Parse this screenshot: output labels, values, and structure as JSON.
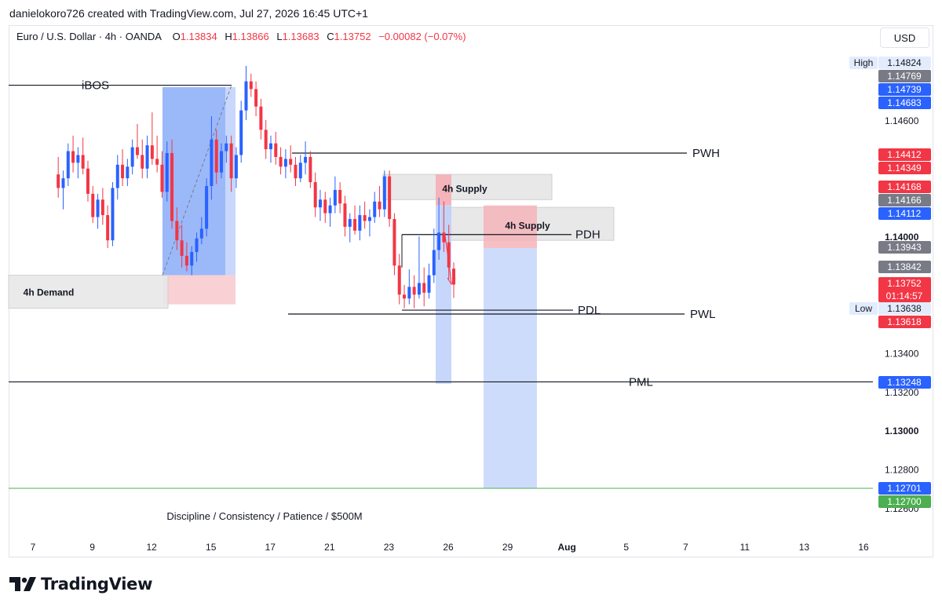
{
  "credit": "danielokoro726 created with TradingView.com, Jul 27, 2026 16:45 UTC+1",
  "header": {
    "symbol": "Euro / U.S. Dollar · 4h · OANDA",
    "o_label": "O",
    "o": "1.13834",
    "h_label": "H",
    "h": "1.13866",
    "l_label": "L",
    "l": "1.13683",
    "c_label": "C",
    "c": "1.13752",
    "change": "−0.00082 (−0.07%)"
  },
  "currency_button": "USD",
  "brand": "TradingView",
  "colors": {
    "bull": "#2962ff",
    "bear": "#f23645",
    "supply_zone": "#e8e8e8",
    "demand_fill": "#f9d0d4",
    "long_zone": "#b9cdfb",
    "accent_blue": "#2962ff",
    "gray_tag": "#787b86",
    "green_line": "#4caf50"
  },
  "chart_data": {
    "type": "candlestick",
    "instrument": "EURUSD",
    "timeframe": "4h",
    "ylim": [
      1.1255,
      1.1495
    ],
    "x_ticks": [
      {
        "label": "7",
        "x": 0
      },
      {
        "label": "9",
        "x": 12
      },
      {
        "label": "12",
        "x": 24
      },
      {
        "label": "15",
        "x": 36
      },
      {
        "label": "17",
        "x": 48
      },
      {
        "label": "21",
        "x": 60
      },
      {
        "label": "23",
        "x": 72
      },
      {
        "label": "26",
        "x": 84
      },
      {
        "label": "29",
        "x": 96
      },
      {
        "label": "Aug",
        "x": 108
      },
      {
        "label": "5",
        "x": 120
      },
      {
        "label": "7",
        "x": 132
      },
      {
        "label": "11",
        "x": 144
      },
      {
        "label": "13",
        "x": 156
      },
      {
        "label": "16",
        "x": 168
      }
    ],
    "price_ticks": [
      "1.14600",
      "1.14000",
      "1.13400",
      "1.13200",
      "1.13000",
      "1.12800",
      "1.12600"
    ],
    "price_ticks_bold": [
      "1.14000",
      "1.13000"
    ],
    "price_tick_values": [
      1.146,
      1.14,
      1.134,
      1.132,
      1.13,
      1.128,
      1.126
    ],
    "candles": [
      [
        1.1432,
        1.1441,
        1.142,
        1.1425
      ],
      [
        1.1425,
        1.1434,
        1.1414,
        1.143
      ],
      [
        1.143,
        1.1448,
        1.1426,
        1.1444
      ],
      [
        1.1444,
        1.1452,
        1.1433,
        1.1438
      ],
      [
        1.1438,
        1.1446,
        1.143,
        1.1442
      ],
      [
        1.1442,
        1.1451,
        1.1432,
        1.1435
      ],
      [
        1.1435,
        1.1439,
        1.1418,
        1.1422
      ],
      [
        1.1422,
        1.1426,
        1.1407,
        1.141
      ],
      [
        1.141,
        1.1422,
        1.1404,
        1.1419
      ],
      [
        1.1419,
        1.1425,
        1.1406,
        1.1411
      ],
      [
        1.1411,
        1.1416,
        1.1394,
        1.1398
      ],
      [
        1.1398,
        1.1428,
        1.1395,
        1.1425
      ],
      [
        1.1425,
        1.1442,
        1.1419,
        1.1437
      ],
      [
        1.1437,
        1.1445,
        1.1426,
        1.143
      ],
      [
        1.143,
        1.144,
        1.1426,
        1.1436
      ],
      [
        1.1436,
        1.145,
        1.1432,
        1.1446
      ],
      [
        1.1446,
        1.1458,
        1.144,
        1.1442
      ],
      [
        1.1442,
        1.145,
        1.143,
        1.1435
      ],
      [
        1.1435,
        1.1452,
        1.143,
        1.1447
      ],
      [
        1.1447,
        1.1464,
        1.1437,
        1.144
      ],
      [
        1.144,
        1.1452,
        1.1433,
        1.1437
      ],
      [
        1.1437,
        1.1444,
        1.142,
        1.1423
      ],
      [
        1.1423,
        1.1449,
        1.1418,
        1.1443
      ],
      [
        1.1443,
        1.145,
        1.1404,
        1.1408
      ],
      [
        1.1408,
        1.1415,
        1.1393,
        1.1398
      ],
      [
        1.1398,
        1.1406,
        1.1384,
        1.139
      ],
      [
        1.139,
        1.1397,
        1.1382,
        1.1385
      ],
      [
        1.1385,
        1.1395,
        1.138,
        1.1392
      ],
      [
        1.1392,
        1.1402,
        1.1387,
        1.1399
      ],
      [
        1.1399,
        1.141,
        1.1396,
        1.1404
      ],
      [
        1.1404,
        1.143,
        1.14,
        1.1426
      ],
      [
        1.1426,
        1.1462,
        1.1419,
        1.145
      ],
      [
        1.145,
        1.1455,
        1.1427,
        1.1433
      ],
      [
        1.1433,
        1.1448,
        1.143,
        1.1444
      ],
      [
        1.1444,
        1.1452,
        1.1438,
        1.1448
      ],
      [
        1.1448,
        1.1452,
        1.1423,
        1.143
      ],
      [
        1.143,
        1.1446,
        1.1425,
        1.1442
      ],
      [
        1.1442,
        1.147,
        1.1438,
        1.1465
      ],
      [
        1.1465,
        1.1488,
        1.146,
        1.148
      ],
      [
        1.148,
        1.1484,
        1.1472,
        1.1476
      ],
      [
        1.1476,
        1.148,
        1.1462,
        1.1467
      ],
      [
        1.1467,
        1.1471,
        1.145,
        1.1455
      ],
      [
        1.1455,
        1.146,
        1.144,
        1.1445
      ],
      [
        1.1445,
        1.1452,
        1.1438,
        1.1448
      ],
      [
        1.1448,
        1.1454,
        1.1437,
        1.1441
      ],
      [
        1.1441,
        1.1446,
        1.1432,
        1.1436
      ],
      [
        1.1436,
        1.1445,
        1.143,
        1.144
      ],
      [
        1.144,
        1.1447,
        1.1433,
        1.1437
      ],
      [
        1.1437,
        1.1441,
        1.1426,
        1.143
      ],
      [
        1.143,
        1.1442,
        1.1428,
        1.1438
      ],
      [
        1.1438,
        1.1449,
        1.1432,
        1.1441
      ],
      [
        1.1441,
        1.1444,
        1.1425,
        1.1428
      ],
      [
        1.1428,
        1.1433,
        1.141,
        1.1415
      ],
      [
        1.1415,
        1.1424,
        1.1408,
        1.1419
      ],
      [
        1.1419,
        1.1423,
        1.1407,
        1.1412
      ],
      [
        1.1412,
        1.142,
        1.1405,
        1.1416
      ],
      [
        1.1416,
        1.1431,
        1.1412,
        1.1424
      ],
      [
        1.1424,
        1.1428,
        1.1412,
        1.1417
      ],
      [
        1.1417,
        1.1421,
        1.14,
        1.1405
      ],
      [
        1.1405,
        1.1412,
        1.1397,
        1.1409
      ],
      [
        1.1409,
        1.1416,
        1.1401,
        1.1403
      ],
      [
        1.1403,
        1.1416,
        1.1398,
        1.1411
      ],
      [
        1.1411,
        1.1418,
        1.1404,
        1.1408
      ],
      [
        1.1408,
        1.1414,
        1.14,
        1.141
      ],
      [
        1.141,
        1.1423,
        1.1407,
        1.1418
      ],
      [
        1.1418,
        1.1426,
        1.141,
        1.1414
      ],
      [
        1.1414,
        1.1434,
        1.141,
        1.1431
      ],
      [
        1.1431,
        1.1434,
        1.1405,
        1.1409
      ],
      [
        1.1409,
        1.1412,
        1.138,
        1.1385
      ],
      [
        1.1385,
        1.1391,
        1.1365,
        1.137
      ],
      [
        1.137,
        1.1375,
        1.1363,
        1.1368
      ],
      [
        1.1368,
        1.1383,
        1.1365,
        1.1374
      ],
      [
        1.1374,
        1.138,
        1.1363,
        1.137
      ],
      [
        1.137,
        1.14,
        1.1368,
        1.1376
      ],
      [
        1.1376,
        1.1384,
        1.1364,
        1.1371
      ],
      [
        1.1371,
        1.1386,
        1.1368,
        1.138
      ],
      [
        1.138,
        1.1404,
        1.1376,
        1.1393
      ],
      [
        1.1393,
        1.142,
        1.1388,
        1.1402
      ],
      [
        1.1402,
        1.1418,
        1.1392,
        1.1397
      ],
      [
        1.1397,
        1.1406,
        1.1378,
        1.1384
      ],
      [
        1.13834,
        1.13866,
        1.13683,
        1.13752
      ]
    ],
    "horizontal_levels": [
      {
        "label": "iBOS",
        "price": 1.1478
      },
      {
        "label": "PWH",
        "price": 1.1443
      },
      {
        "label": "PDH",
        "price": 1.1401
      },
      {
        "label": "PDL",
        "price": 1.1362
      },
      {
        "label": "PWL",
        "price": 1.136
      },
      {
        "label": "PML",
        "price": 1.1325
      }
    ],
    "zones": [
      {
        "label": "4h Supply",
        "top": 1.1432,
        "bottom": 1.1419
      },
      {
        "label": "4h Supply",
        "top": 1.1415,
        "bottom": 1.1398
      },
      {
        "label": "4h Demand",
        "top": 1.138,
        "bottom": 1.1363
      }
    ],
    "green_level": 1.12701,
    "annotation": "Discipline / Consistency / Patience / $500M",
    "price_labels": [
      {
        "text": "1.14824",
        "value": 1.14824,
        "style": "plain",
        "tag": "High"
      },
      {
        "text": "1.14769",
        "value": 1.14769,
        "style": "gray"
      },
      {
        "text": "1.14739",
        "value": 1.14739,
        "style": "blue"
      },
      {
        "text": "1.14683",
        "value": 1.14683,
        "style": "blue"
      },
      {
        "text": "1.14412",
        "value": 1.14412,
        "style": "red"
      },
      {
        "text": "1.14349",
        "value": 1.14349,
        "style": "red"
      },
      {
        "text": "1.14168",
        "value": 1.14168,
        "style": "red"
      },
      {
        "text": "1.14166",
        "value": 1.14166,
        "style": "gray"
      },
      {
        "text": "1.14112",
        "value": 1.14112,
        "style": "blue"
      },
      {
        "text": "1.13943",
        "value": 1.13943,
        "style": "gray"
      },
      {
        "text": "1.13842",
        "value": 1.13842,
        "style": "gray"
      },
      {
        "text": "1.13752",
        "value": 1.13752,
        "style": "red",
        "sub": "01:14:57"
      },
      {
        "text": "1.13638",
        "value": 1.13638,
        "style": "plain",
        "tag": "Low"
      },
      {
        "text": "1.13618",
        "value": 1.13618,
        "style": "red"
      },
      {
        "text": "1.13248",
        "value": 1.13248,
        "style": "blue"
      },
      {
        "text": "1.12701",
        "value": 1.12701,
        "style": "blue"
      },
      {
        "text": "1.12700",
        "value": 1.127,
        "style": "green"
      }
    ]
  }
}
